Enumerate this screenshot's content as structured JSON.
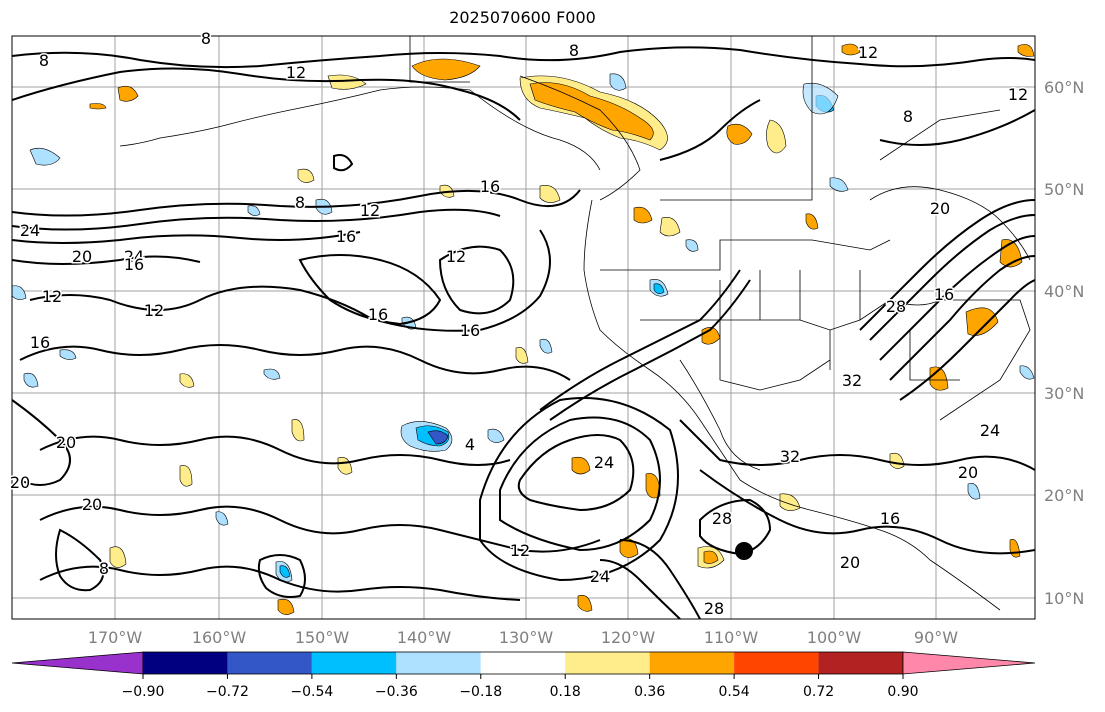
{
  "title": "2025070600 F000",
  "map": {
    "lat_labels": [
      "60°N",
      "50°N",
      "40°N",
      "30°N",
      "20°N",
      "10°N"
    ],
    "lon_labels": [
      "170°W",
      "160°W",
      "150°W",
      "140°W",
      "130°W",
      "120°W",
      "110°W",
      "100°W",
      "90°W"
    ],
    "contour_labels": [
      {
        "t": "8"
      },
      {
        "t": "12"
      },
      {
        "t": "8"
      },
      {
        "t": "12"
      },
      {
        "t": "12"
      },
      {
        "t": "8"
      },
      {
        "t": "8"
      },
      {
        "t": "16"
      },
      {
        "t": "8"
      },
      {
        "t": "12"
      },
      {
        "t": "16"
      },
      {
        "t": "12"
      },
      {
        "t": "24"
      },
      {
        "t": "20"
      },
      {
        "t": "24"
      },
      {
        "t": "16"
      },
      {
        "t": "12"
      },
      {
        "t": "12"
      },
      {
        "t": "16"
      },
      {
        "t": "16"
      },
      {
        "t": "16"
      },
      {
        "t": "20"
      },
      {
        "t": "20"
      },
      {
        "t": "20"
      },
      {
        "t": "24"
      },
      {
        "t": "4"
      },
      {
        "t": "28"
      },
      {
        "t": "32"
      },
      {
        "t": "20"
      },
      {
        "t": "16"
      },
      {
        "t": "20"
      },
      {
        "t": "12"
      },
      {
        "t": "8"
      },
      {
        "t": "28"
      },
      {
        "t": "32"
      },
      {
        "t": "24"
      },
      {
        "t": "20"
      },
      {
        "t": "16"
      },
      {
        "t": "28"
      },
      {
        "t": "24"
      }
    ]
  },
  "colorbar": {
    "colors": [
      "#9932cc",
      "#000080",
      "#3457c8",
      "#00bfff",
      "#aee0ff",
      "#ffffff",
      "#ffec8b",
      "#ffa500",
      "#ff4500",
      "#b22222",
      "#ff88aa"
    ],
    "ticks": [
      "−0.90",
      "−0.72",
      "−0.54",
      "−0.36",
      "−0.18",
      "0.18",
      "0.36",
      "0.54",
      "0.72",
      "0.90"
    ]
  },
  "colors": {
    "contour": "#000000",
    "grid": "#a0a0a0",
    "border": "#000000"
  },
  "marker": {
    "name": "black-dot"
  }
}
